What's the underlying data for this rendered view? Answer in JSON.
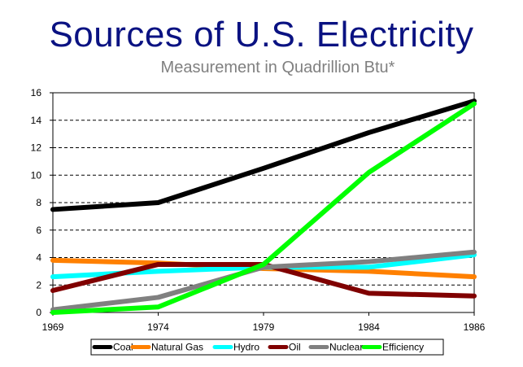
{
  "chart_data": {
    "type": "line",
    "title": "Sources of U.S. Electricity",
    "subtitle": "Measurement in Quadrillion Btu*",
    "xlabel": "",
    "ylabel": "",
    "x": [
      "1969",
      "1974",
      "1979",
      "1984",
      "1986"
    ],
    "ylim": [
      0,
      16
    ],
    "yticks": [
      "0",
      "2",
      "4",
      "6",
      "8",
      "10",
      "12",
      "14",
      "16"
    ],
    "grid": "horizontal dashed",
    "legend_position": "bottom",
    "series": [
      {
        "name": "Coal",
        "color": "#000000",
        "values": [
          7.5,
          8.0,
          10.5,
          13.1,
          15.4
        ]
      },
      {
        "name": "Natural Gas",
        "color": "#ff8000",
        "values": [
          3.8,
          3.6,
          3.2,
          3.0,
          2.6
        ]
      },
      {
        "name": "Hydro",
        "color": "#00ffff",
        "values": [
          2.6,
          3.0,
          3.3,
          3.3,
          4.2
        ]
      },
      {
        "name": "Oil",
        "color": "#800000",
        "values": [
          1.6,
          3.5,
          3.5,
          1.4,
          1.2
        ]
      },
      {
        "name": "Nuclear",
        "color": "#808080",
        "values": [
          0.2,
          1.1,
          3.3,
          3.7,
          4.4
        ]
      },
      {
        "name": "Efficiency",
        "color": "#00ff00",
        "values": [
          0.0,
          0.4,
          3.5,
          10.2,
          15.2
        ]
      }
    ]
  }
}
